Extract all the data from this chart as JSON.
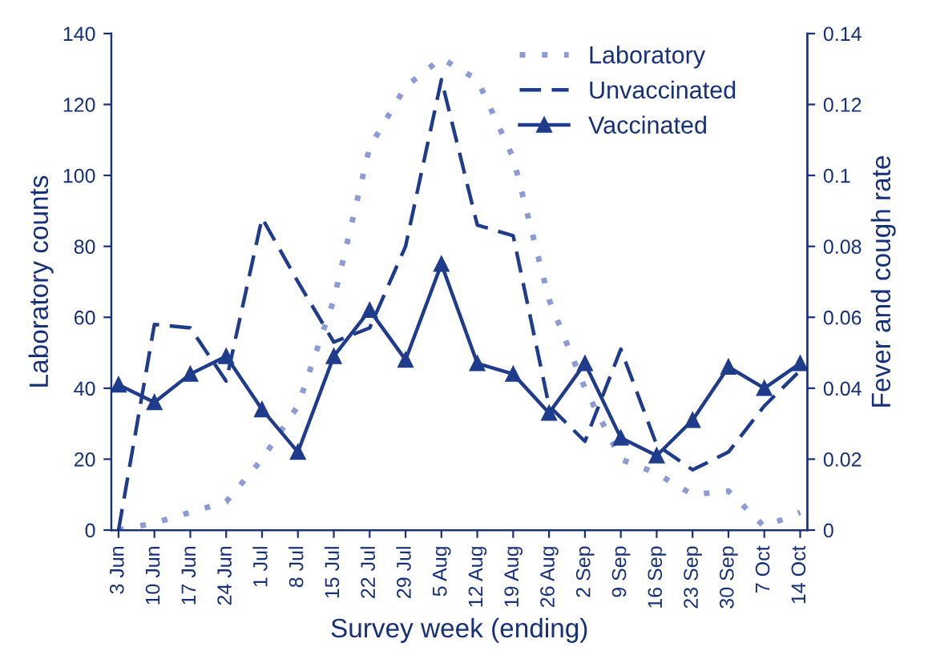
{
  "chart_data": {
    "type": "line",
    "xlabel": "Survey week (ending)",
    "ylabel": "Laboratory counts",
    "y2label": "Fever and cough rate",
    "categories": [
      "3 Jun",
      "10 Jun",
      "17 Jun",
      "24 Jun",
      "1 Jul",
      "8 Jul",
      "15 Jul",
      "22 Jul",
      "29 Jul",
      "5 Aug",
      "12 Aug",
      "19 Aug",
      "26 Aug",
      "2 Sep",
      "9 Sep",
      "16 Sep",
      "23 Sep",
      "30 Sep",
      "7 Oct",
      "14 Oct"
    ],
    "ylim": [
      0,
      140
    ],
    "yticks": [
      0,
      20,
      40,
      60,
      80,
      100,
      120,
      140
    ],
    "y2lim": [
      0,
      0.14
    ],
    "y2ticks": [
      0,
      0.02,
      0.04,
      0.06,
      0.08,
      0.1,
      0.12,
      0.14
    ],
    "grid": false,
    "legend": "top right",
    "series": [
      {
        "name": "Laboratory",
        "color": "#8c9ad6",
        "line_style": "dotted",
        "marker": "none",
        "values": [
          0,
          2,
          5,
          8,
          20,
          35,
          65,
          108,
          125,
          133,
          127,
          105,
          65,
          40,
          20,
          16,
          10,
          11,
          1,
          5
        ]
      },
      {
        "name": "Unvaccinated",
        "color": "#1f3c8c",
        "line_style": "dashed",
        "marker": "none",
        "axis": "y2",
        "values": [
          0,
          0.058,
          0.057,
          0.042,
          0.088,
          0.07,
          0.053,
          0.057,
          0.08,
          0.127,
          0.086,
          0.083,
          0.035,
          0.025,
          0.051,
          0.024,
          0.017,
          0.022,
          0.035,
          0.045
        ]
      },
      {
        "name": "Vaccinated",
        "color": "#1f3c8c",
        "line_style": "solid",
        "marker": "triangle",
        "axis": "y2",
        "values": [
          0.041,
          0.036,
          0.044,
          0.049,
          0.034,
          0.022,
          0.049,
          0.062,
          0.048,
          0.075,
          0.047,
          0.044,
          0.033,
          0.047,
          0.026,
          0.021,
          0.031,
          0.046,
          0.04,
          0.047
        ]
      }
    ]
  }
}
